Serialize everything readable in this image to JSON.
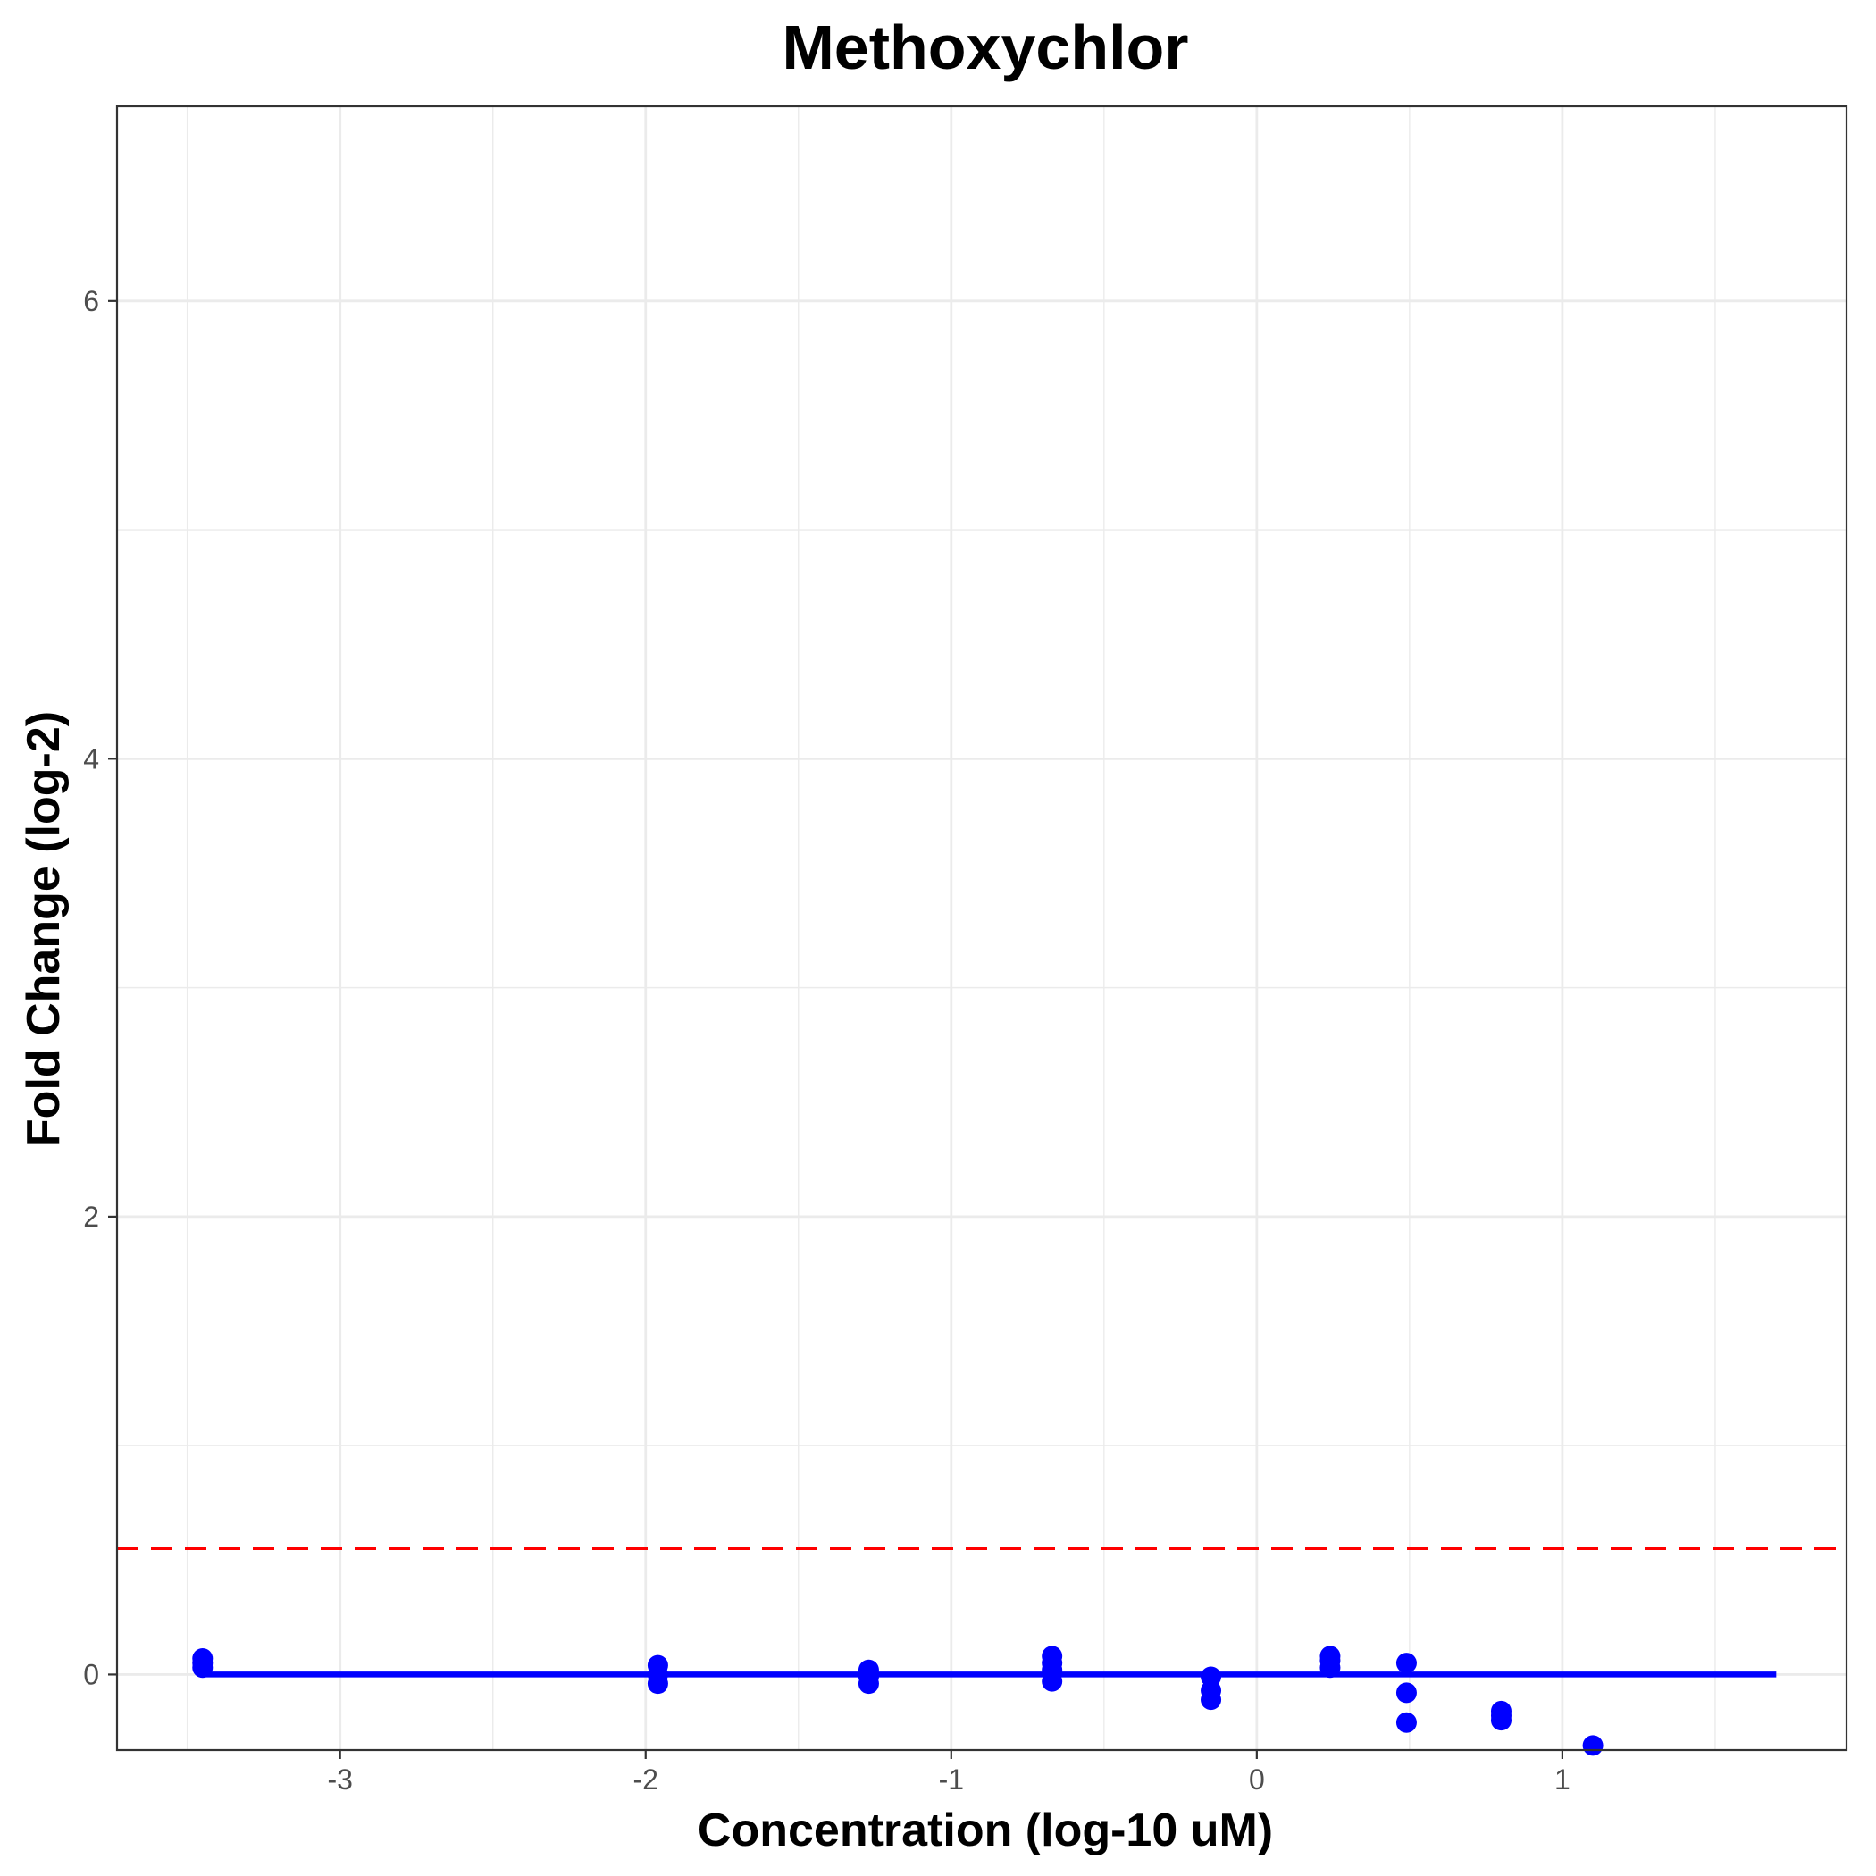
{
  "chart_data": {
    "type": "scatter",
    "title": "Methoxychlor",
    "xlabel": "Concentration (log-10 uM)",
    "ylabel": "Fold Change (log-2)",
    "xlim": [
      -3.73,
      1.93
    ],
    "ylim": [
      -0.33,
      6.85
    ],
    "x_ticks": [
      -3,
      -2,
      -1,
      0,
      1
    ],
    "x_tick_labels": [
      "-3",
      "-2",
      "-1",
      "0",
      "1"
    ],
    "y_ticks": [
      0,
      2,
      4,
      6
    ],
    "y_tick_labels": [
      "0",
      "2",
      "4",
      "6"
    ],
    "grid": true,
    "series": [
      {
        "kind": "points",
        "color": "#0000ff",
        "points": [
          {
            "x": -3.45,
            "y": 0.07
          },
          {
            "x": -3.45,
            "y": 0.05
          },
          {
            "x": -3.45,
            "y": 0.03
          },
          {
            "x": -1.96,
            "y": 0.04
          },
          {
            "x": -1.96,
            "y": 0.0
          },
          {
            "x": -1.96,
            "y": -0.04
          },
          {
            "x": -1.27,
            "y": 0.02
          },
          {
            "x": -1.27,
            "y": -0.01
          },
          {
            "x": -1.27,
            "y": -0.04
          },
          {
            "x": -0.67,
            "y": 0.08
          },
          {
            "x": -0.67,
            "y": 0.05
          },
          {
            "x": -0.67,
            "y": 0.02
          },
          {
            "x": -0.67,
            "y": -0.03
          },
          {
            "x": -0.15,
            "y": -0.01
          },
          {
            "x": -0.15,
            "y": -0.07
          },
          {
            "x": -0.15,
            "y": -0.11
          },
          {
            "x": 0.24,
            "y": 0.08
          },
          {
            "x": 0.24,
            "y": 0.06
          },
          {
            "x": 0.24,
            "y": 0.03
          },
          {
            "x": 0.49,
            "y": 0.05
          },
          {
            "x": 0.49,
            "y": -0.08
          },
          {
            "x": 0.49,
            "y": -0.21
          },
          {
            "x": 0.8,
            "y": -0.16
          },
          {
            "x": 0.8,
            "y": -0.18
          },
          {
            "x": 0.8,
            "y": -0.2
          },
          {
            "x": 1.1,
            "y": -0.31
          }
        ]
      },
      {
        "kind": "fit-line",
        "color": "#0000ff",
        "x": [
          -3.45,
          1.7
        ],
        "y": [
          0,
          0
        ]
      },
      {
        "kind": "threshold-line",
        "color": "#ff0000",
        "style": "dashed",
        "y": 0.55
      }
    ]
  }
}
